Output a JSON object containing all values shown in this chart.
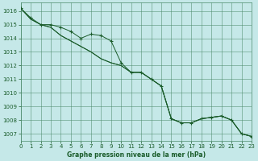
{
  "title": "Graphe pression niveau de la mer (hPa)",
  "background_color": "#c5e8e8",
  "grid_color": "#4a8a6a",
  "line_color": "#1a5c2a",
  "xlim": [
    0,
    23
  ],
  "ylim": [
    1006.5,
    1016.6
  ],
  "yticks": [
    1007,
    1008,
    1009,
    1010,
    1011,
    1012,
    1013,
    1014,
    1015,
    1016
  ],
  "xticks": [
    0,
    1,
    2,
    3,
    4,
    5,
    6,
    7,
    8,
    9,
    10,
    11,
    12,
    13,
    14,
    15,
    16,
    17,
    18,
    19,
    20,
    21,
    22,
    23
  ],
  "series1_x": [
    0,
    1,
    2,
    3,
    4,
    5,
    6,
    7,
    8,
    9,
    10,
    11,
    12,
    13,
    14,
    15,
    16,
    17,
    18,
    19,
    20,
    21,
    22,
    23
  ],
  "series1_y": [
    1016.2,
    1015.5,
    1015.0,
    1015.0,
    1014.8,
    1014.5,
    1014.0,
    1014.3,
    1014.2,
    1013.8,
    1012.2,
    1011.5,
    1011.5,
    1011.0,
    1010.5,
    1008.1,
    1007.8,
    1007.8,
    1008.1,
    1008.2,
    1008.3,
    1008.0,
    1007.0,
    1006.8
  ],
  "series2_x": [
    0,
    1,
    2,
    3,
    4,
    5,
    6,
    7,
    8,
    9,
    10,
    11,
    12,
    13,
    14,
    15,
    16,
    17,
    18,
    19,
    20,
    21,
    22,
    23
  ],
  "series2_y": [
    1016.2,
    1015.4,
    1015.0,
    1014.8,
    1014.2,
    1013.8,
    1013.4,
    1013.0,
    1012.5,
    1012.2,
    1012.0,
    1011.5,
    1011.5,
    1011.0,
    1010.5,
    1008.1,
    1007.8,
    1007.8,
    1008.1,
    1008.2,
    1008.3,
    1008.0,
    1007.0,
    1006.8
  ],
  "series3_x": [
    0,
    1,
    2,
    3,
    4,
    5,
    6,
    7,
    8,
    9,
    10,
    11,
    12,
    13,
    14,
    15,
    16,
    17,
    18,
    19,
    20,
    21,
    22,
    23
  ],
  "series3_y": [
    1016.2,
    1015.4,
    1015.0,
    1014.8,
    1014.2,
    1013.8,
    1013.4,
    1013.0,
    1012.5,
    1012.2,
    1012.0,
    1011.5,
    1011.5,
    1011.0,
    1010.5,
    1008.1,
    1007.8,
    1007.8,
    1008.1,
    1008.2,
    1008.3,
    1008.0,
    1007.0,
    1006.8
  ]
}
